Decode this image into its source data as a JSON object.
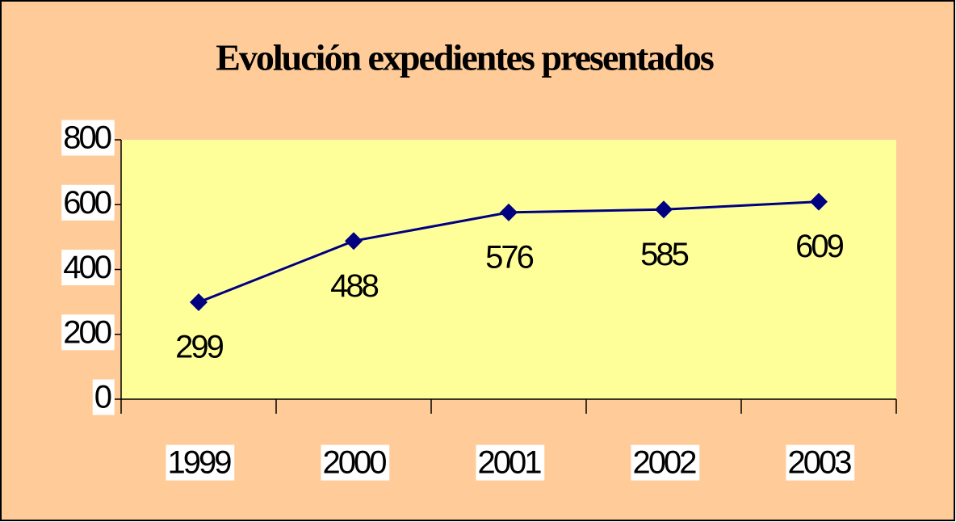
{
  "chart_data": {
    "type": "line",
    "title": "Evolución expedientes presentados",
    "categories": [
      "1999",
      "2000",
      "2001",
      "2002",
      "2003"
    ],
    "values": [
      299,
      488,
      576,
      585,
      609
    ],
    "color": "#000080",
    "ylim": [
      0,
      800
    ],
    "yticks": [
      0,
      200,
      400,
      600,
      800
    ]
  }
}
